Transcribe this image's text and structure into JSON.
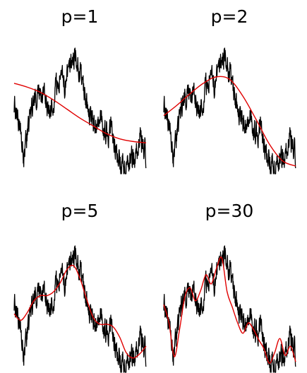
{
  "chart_data": [
    {
      "type": "line",
      "title": "p=1",
      "series": [
        {
          "role": "data",
          "color": "#000000"
        },
        {
          "role": "fit",
          "color": "#e00000",
          "x": [
            0,
            0.1,
            0.2,
            0.3,
            0.4,
            0.5,
            0.6,
            0.7,
            0.8,
            0.9,
            1
          ],
          "y": [
            0.7,
            0.67,
            0.63,
            0.57,
            0.5,
            0.43,
            0.37,
            0.31,
            0.27,
            0.25,
            0.24
          ]
        }
      ]
    },
    {
      "type": "line",
      "title": "p=2",
      "series": [
        {
          "role": "data",
          "color": "#000000"
        },
        {
          "role": "fit",
          "color": "#e00000",
          "x": [
            0,
            0.1,
            0.2,
            0.3,
            0.4,
            0.5,
            0.6,
            0.7,
            0.8,
            0.9,
            1
          ],
          "y": [
            0.45,
            0.53,
            0.62,
            0.7,
            0.75,
            0.73,
            0.6,
            0.42,
            0.23,
            0.1,
            0.06
          ]
        }
      ]
    },
    {
      "type": "line",
      "title": "p=5",
      "series": [
        {
          "role": "data",
          "color": "#000000"
        },
        {
          "role": "fit",
          "color": "#e00000",
          "x": [
            0,
            0.05,
            0.1,
            0.15,
            0.2,
            0.25,
            0.3,
            0.35,
            0.4,
            0.45,
            0.5,
            0.55,
            0.6,
            0.65,
            0.7,
            0.75,
            0.8,
            0.85,
            0.9,
            0.95,
            1
          ],
          "y": [
            0.45,
            0.4,
            0.46,
            0.55,
            0.59,
            0.59,
            0.62,
            0.69,
            0.79,
            0.82,
            0.72,
            0.56,
            0.42,
            0.37,
            0.37,
            0.35,
            0.27,
            0.15,
            0.11,
            0.14,
            0.2
          ]
        }
      ]
    },
    {
      "type": "line",
      "title": "p=30",
      "series": [
        {
          "role": "data",
          "color": "#000000"
        },
        {
          "role": "fit",
          "color": "#e00000",
          "x": [
            0,
            0.04,
            0.08,
            0.12,
            0.16,
            0.2,
            0.24,
            0.28,
            0.32,
            0.36,
            0.4,
            0.44,
            0.48,
            0.52,
            0.56,
            0.6,
            0.64,
            0.68,
            0.72,
            0.76,
            0.8,
            0.84,
            0.88,
            0.92,
            0.96,
            1
          ],
          "y": [
            0.52,
            0.38,
            0.12,
            0.33,
            0.58,
            0.65,
            0.55,
            0.63,
            0.75,
            0.68,
            0.8,
            0.88,
            0.62,
            0.5,
            0.38,
            0.3,
            0.38,
            0.33,
            0.25,
            0.18,
            0.07,
            0.15,
            0.26,
            0.13,
            0.2,
            0.08
          ]
        }
      ]
    }
  ]
}
